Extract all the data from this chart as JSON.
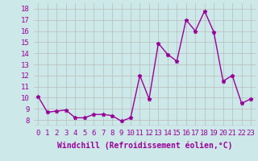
{
  "x": [
    0,
    1,
    2,
    3,
    4,
    5,
    6,
    7,
    8,
    9,
    10,
    11,
    12,
    13,
    14,
    15,
    16,
    17,
    18,
    19,
    20,
    21,
    22,
    23
  ],
  "y": [
    10.1,
    8.7,
    8.8,
    8.9,
    8.2,
    8.2,
    8.5,
    8.5,
    8.4,
    7.9,
    8.2,
    12.0,
    9.9,
    14.9,
    13.9,
    13.3,
    17.0,
    16.0,
    17.8,
    15.9,
    11.5,
    12.0,
    9.5,
    9.9
  ],
  "line_color": "#990099",
  "marker": "*",
  "marker_size": 3.5,
  "bg_color": "#cce8e8",
  "grid_color": "#bbbbbb",
  "xlabel": "Windchill (Refroidissement éolien,°C)",
  "ylim": [
    7.5,
    18.5
  ],
  "xlim": [
    -0.5,
    23.5
  ],
  "yticks": [
    8,
    9,
    10,
    11,
    12,
    13,
    14,
    15,
    16,
    17,
    18
  ],
  "xticks": [
    0,
    1,
    2,
    3,
    4,
    5,
    6,
    7,
    8,
    9,
    10,
    11,
    12,
    13,
    14,
    15,
    16,
    17,
    18,
    19,
    20,
    21,
    22,
    23
  ],
  "font_color": "#990099",
  "tick_fontsize": 6.5,
  "xlabel_fontsize": 7.0,
  "linewidth": 1.0
}
